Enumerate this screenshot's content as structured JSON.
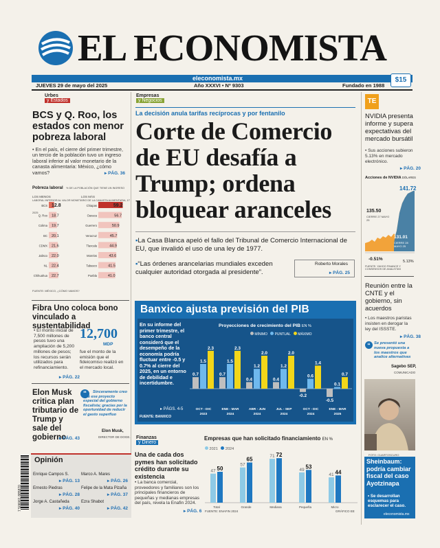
{
  "masthead": {
    "name": "EL ECONOMISTA",
    "date": "JUEVES 29 de mayo del 2025",
    "url": "eleconomista.mx",
    "edition_label": "Año XXXVI • Nº",
    "edition_number": "9303",
    "founded": "Fundado en 1988",
    "price": "$15"
  },
  "colors": {
    "brand_blue": "#1a6fb1",
    "accent_red": "#c0312b",
    "yellow": "#f2d61a",
    "chart_gray": "#bfbfbf",
    "chart_blue": "#1f78c1"
  },
  "left1": {
    "section_top": "Urbes",
    "section_bottom": "y Estados",
    "headline": "BCS y Q. Roo, los estados con menor pobreza laboral",
    "bullet": "En el país, el cierre del primer trimestre, un tercio de la población tuvo un ingreso laboral inferior al valor monetario de la canasta alimentaria: México, ¿cómo vamos?",
    "page": "PÁG. 36",
    "chart_title": "Pobreza laboral",
    "chart_subtitle": "% DE LA POBLACIÓN QUE TIENE UN INGRESO LABORAL INFERIOR AL VALOR MONETARIO DE LA CANASTA ALIMENTARIA, 1T 2025",
    "col_left": "LOS MENOS",
    "col_right": "LOS MÁS",
    "source": "FUENTE: MÉXICO, ¿CÓMO VAMOS?"
  },
  "chart_data": [
    {
      "type": "bar",
      "title": "Pobreza laboral",
      "categories": [
        "BCS",
        "Q. Roo",
        "Colima",
        "BC",
        "CDMX",
        "Jalisco",
        "NL",
        "Chihuahua"
      ],
      "values": [
        12.8,
        18.7,
        19.7,
        20.1,
        21.6,
        22.0,
        22.4,
        22.7
      ]
    },
    {
      "type": "bar",
      "title": "Pobreza laboral",
      "categories": [
        "Chiapas",
        "Oaxaca",
        "Guerrero",
        "Veracruz",
        "Tlaxcala",
        "Morelos",
        "Tabasco",
        "Puebla"
      ],
      "values": [
        59.2,
        56.7,
        50.9,
        45.7,
        44.9,
        43.6,
        41.5,
        41.0
      ]
    },
    {
      "type": "bar",
      "title": "Proyecciones de crecimiento del PIB",
      "ylabel": "EN %",
      "categories": [
        "OCT - DIC 2023",
        "ENE - MAR 2024",
        "ABR - JUN 2024",
        "JUL - SEP 2024",
        "OCT - DIC 2024",
        "ENE - MAR 2025"
      ],
      "series": [
        {
          "name": "MÍNIMO",
          "values": [
            0.7,
            0.7,
            0.4,
            0.4,
            -0.2,
            -0.5
          ]
        },
        {
          "name": "PUNTUAL",
          "values": [
            1.5,
            1.5,
            1.2,
            1.2,
            0.6,
            0.1
          ]
        },
        {
          "name": "MÁXIMO",
          "values": [
            2.3,
            2.3,
            2.0,
            2.0,
            1.4,
            0.7
          ]
        }
      ]
    },
    {
      "type": "bar",
      "title": "Empresas que han solicitado financiamiento",
      "ylabel": "EN %",
      "categories": [
        "Total",
        "Grande",
        "Mediana",
        "Pequeña",
        "Micro"
      ],
      "series": [
        {
          "name": "2021",
          "values": [
            47,
            57,
            71,
            49,
            41
          ]
        },
        {
          "name": "2024",
          "values": [
            50,
            65,
            72,
            53,
            44
          ]
        }
      ]
    },
    {
      "type": "area",
      "title": "Acciones de NVIDIA",
      "ylabel": "DÓLARES",
      "annotations": [
        "135.50",
        "141.72",
        "131.01",
        "-0.51%",
        "5.13%"
      ]
    }
  ],
  "left2": {
    "headline": "Fibra Uno coloca bono vinculado a sustentabilidad",
    "bullet": "El monto inicial de 7,500 millones de pesos tuvo una ampliación de 5,200 millones de pesos; los recursos serán utilizados para refinanciamiento.",
    "big_number": "12,700",
    "big_unit": "MDP",
    "big_caption": "fue el monto de la emisión que el fideicomiso realizó en el mercado local.",
    "page": "PÁG. 22"
  },
  "left3": {
    "headline": "Elon Musk critica plan tributario de Trump y sale del gobierno",
    "quote": "Sinceramente creo que ese proyecto especial del gobierno fiscalista; gracias por la oportunidad de reducir el gasto superfluo",
    "quote_author": "Elon Musk,",
    "quote_role": "DIRECTOR DE DOGE.",
    "page": "PÁG. 43"
  },
  "opinion": {
    "title": "Opinión",
    "barcode": "7 506061 885870",
    "items": [
      {
        "name": "Enrique Campos S.",
        "page": "PÁG. 13"
      },
      {
        "name": "Marco A. Mares",
        "page": "PÁG. 26"
      },
      {
        "name": "Ernesto Piedras",
        "page": "PÁG. 28"
      },
      {
        "name": "Felipe de la Mata Pizaña",
        "page": "PÁG. 37"
      },
      {
        "name": "Jorge A. Castañeda",
        "page": "PÁG. 40"
      },
      {
        "name": "Ezra Shabot",
        "page": "PÁG. 42"
      }
    ]
  },
  "lead": {
    "section_top": "Empresas",
    "section_bottom": "y Negocios",
    "kicker": "La decisión anula tarifas recíprocas y por fentanilo",
    "headline": "Corte de Comercio de EU desafía a Trump; ordena bloquear aranceles",
    "bullet1": "La Casa Blanca apeló el fallo del Tribunal de Comercio Internacional de EU, que invalidó el uso de una ley de 1977.",
    "bullet2": "“Las órdenes arancelarias mundiales exceden cualquier autoridad otorgada al presidente”.",
    "byline": "Roberto Morales",
    "page": "PÁG. 25"
  },
  "banxico": {
    "headline": "Banxico ajusta previsión del PIB",
    "body": "En su informe del primer trimestre, el banco central consideró que el desempeño de la economía podría fluctuar entre -0.5 y 0.7% al cierre del 2025, en un entorno de debilidad e incertidumbre.",
    "page": "PÁGS. 4-5",
    "source": "FUENTE: BANXICO",
    "chart_title": "Proyecciones de crecimiento del PIB",
    "chart_unit": "EN %"
  },
  "finanzas": {
    "section_top": "Finanzas",
    "section_bottom": "y Dinero",
    "headline": "Una de cada dos pymes han solicitado crédito durante su existencia",
    "bullet": "La banca comercial, proveedores y familiares son los principales financieros de pequeñas y medianas empresas del país, revela la Enafin 2024.",
    "page": "PÁG. 6",
    "chart_title": "Empresas que han solicitado financiamiento",
    "chart_unit": "EN %",
    "source": "FUENTE: ENAFIN 2024",
    "credit": "GRÁFICO EE"
  },
  "right1": {
    "logo": "TE",
    "headline": "NVIDIA presenta informe y supera expectativas del mercado bursátil",
    "bullet": "Sus acciones subieron 5.13% en mercado electrónico.",
    "page": "PÁG. 20",
    "chart_title": "Acciones de NVIDIA",
    "chart_unit": "DÓLARES",
    "label1": "135.50",
    "label1b": "CIERRE 27 MAYO 25",
    "label2": "141.72",
    "label3": "131.01",
    "label3b": "CIERRE 28 MAYO 25",
    "pct1": "-0.51%",
    "pct2": "5.13%",
    "source": "FUENTE: YAHOO FINANCE Y CONSENSOS DE ANALISTAS"
  },
  "right2": {
    "headline": "Reunión entre la CNTE y el gobierno, sin acuerdos",
    "bullet": "Los maestros paristas insisten en derogar la ley del ISSSTE.",
    "page": "PÁG. 38",
    "quote": "Se presentó una nueva propuesta a los maestros que analice alternativas",
    "quote_author": "Sagebo SEP,",
    "quote_role": "COMUNICADO"
  },
  "right3": {
    "photo_credit": "FOTO: CUARTOSCURO",
    "headline": "Sheinbaum: podría cambiar fiscal del caso Ayotzinapa",
    "bullet": "Se desarrollan esquemas para esclarecer el caso.",
    "url": "eleconomista.mx"
  }
}
